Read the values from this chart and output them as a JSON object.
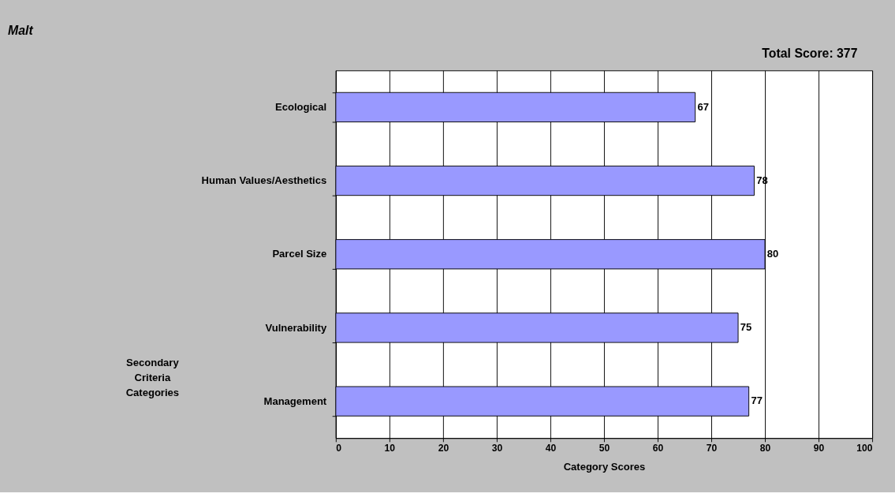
{
  "chart_data": {
    "type": "bar",
    "orientation": "horizontal",
    "title": "Malt",
    "annotations": [
      "Total Score:     377"
    ],
    "categories": [
      "Ecological",
      "Human Values/Aesthetics",
      "Parcel Size",
      "Vulnerability",
      "Management"
    ],
    "values": [
      67,
      78,
      80,
      75,
      77
    ],
    "color": "#9999ff",
    "data_labels": true,
    "xlim": [
      0,
      100
    ],
    "xticks": [
      0,
      10,
      20,
      30,
      40,
      50,
      60,
      70,
      80,
      90,
      100
    ],
    "grid": "x",
    "xlabel": "Category Scores",
    "ylabel": "Secondary Criteria Categories"
  }
}
